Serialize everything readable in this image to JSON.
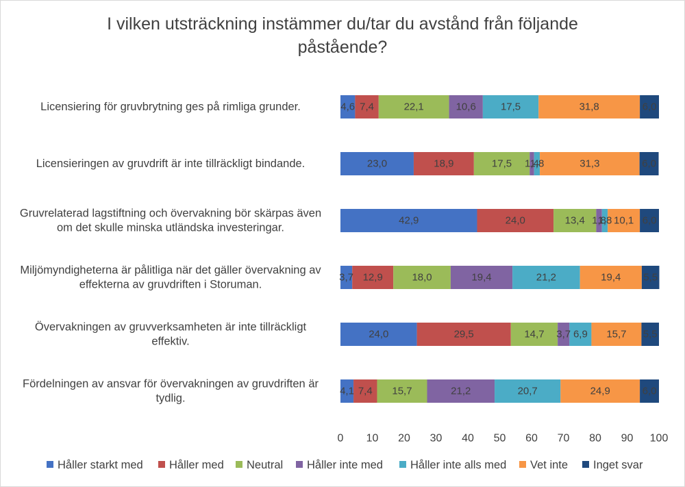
{
  "chart_data": {
    "type": "bar",
    "orientation": "horizontal",
    "stacked": true,
    "title_lines": [
      "I vilken utsträckning instämmer du/tar du avstånd från följande",
      "påstående?"
    ],
    "categories": [
      [
        "Licensiering för gruvbrytning ges på rimliga grunder."
      ],
      [
        "Licensieringen av gruvdrift är inte tillräckligt bindande."
      ],
      [
        "Gruvrelaterad lagstiftning och övervakning bör skärpas även",
        "om det skulle minska utländska investeringar."
      ],
      [
        "Miljömyndigheterna är pålitliga när det gäller övervakning av",
        "effekterna av gruvdriften i Storuman."
      ],
      [
        "Övervakningen av gruvverksamheten är inte tillräckligt",
        "effektiv."
      ],
      [
        "Fördelningen av ansvar för övervakningen av gruvdriften är",
        "tydlig."
      ]
    ],
    "series": [
      {
        "name": "Håller starkt med",
        "color": "#4472c4",
        "values": [
          4.6,
          23.0,
          42.9,
          3.7,
          24.0,
          4.1
        ],
        "labels": [
          "4,6",
          "23,0",
          "42,9",
          "3,7",
          "24,0",
          "4,1"
        ]
      },
      {
        "name": "Håller med",
        "color": "#c0504d",
        "values": [
          7.4,
          18.9,
          24.0,
          12.9,
          29.5,
          7.4
        ],
        "labels": [
          "7,4",
          "18,9",
          "24,0",
          "12,9",
          "29,5",
          "7,4"
        ]
      },
      {
        "name": "Neutral",
        "color": "#9bbb59",
        "values": [
          22.1,
          17.5,
          13.4,
          18.0,
          14.7,
          15.7
        ],
        "labels": [
          "22,1",
          "17,5",
          "13,4",
          "18,0",
          "14,7",
          "15,7"
        ]
      },
      {
        "name": "Håller inte med",
        "color": "#8064a2",
        "values": [
          10.6,
          1.4,
          1.8,
          19.4,
          3.7,
          21.2
        ],
        "labels": [
          "10,6",
          "1,4",
          "1,8",
          "19,4",
          "3,7",
          "21,2"
        ]
      },
      {
        "name": "Håller inte alls med",
        "color": "#4bacc6",
        "values": [
          17.5,
          1.8,
          1.8,
          21.2,
          6.9,
          20.7
        ],
        "labels": [
          "17,5",
          "1,8",
          "1,8",
          "21,2",
          "6,9",
          "20,7"
        ]
      },
      {
        "name": "Vet inte",
        "color": "#f79646",
        "values": [
          31.8,
          31.3,
          10.1,
          19.4,
          15.7,
          24.9
        ],
        "labels": [
          "31,8",
          "31,3",
          "10,1",
          "19,4",
          "15,7",
          "24,9"
        ]
      },
      {
        "name": "Inget svar",
        "color": "#1f497d",
        "values": [
          6.0,
          6.0,
          6.0,
          5.5,
          5.5,
          6.0
        ],
        "labels": [
          "6,0",
          "6,0",
          "6,0",
          "5,5",
          "5,5",
          "6,0"
        ]
      }
    ],
    "xlim": [
      0,
      100
    ],
    "xticks": [
      "0",
      "10",
      "20",
      "30",
      "40",
      "50",
      "60",
      "70",
      "80",
      "90",
      "100"
    ],
    "grid": false,
    "legend_position": "bottom"
  }
}
